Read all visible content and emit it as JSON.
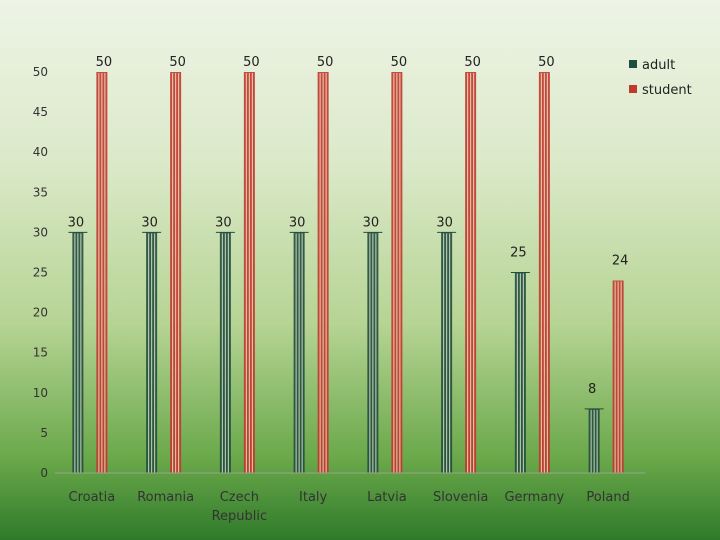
{
  "chart_data": {
    "type": "bar",
    "categories": [
      "Croatia",
      "Romania",
      "Czech Republic",
      "Italy",
      "Latvia",
      "Slovenia",
      "Germany",
      "Poland"
    ],
    "category_lines": [
      [
        "Croatia"
      ],
      [
        "Romania"
      ],
      [
        "Czech",
        "Republic"
      ],
      [
        "Italy"
      ],
      [
        "Latvia"
      ],
      [
        "Slovenia"
      ],
      [
        "Germany"
      ],
      [
        "Poland"
      ]
    ],
    "series": [
      {
        "name": "adult",
        "color": "#1f4e3d",
        "values": [
          30,
          30,
          30,
          30,
          30,
          30,
          25,
          8
        ]
      },
      {
        "name": "student",
        "color": "#c0392b",
        "values": [
          50,
          50,
          50,
          50,
          50,
          50,
          50,
          24
        ]
      }
    ],
    "ylim": [
      0,
      50
    ],
    "yticks": [
      0,
      5,
      10,
      15,
      20,
      25,
      30,
      35,
      40,
      45,
      50
    ],
    "grid": false,
    "legend_position": "top-right",
    "data_labels": true
  }
}
